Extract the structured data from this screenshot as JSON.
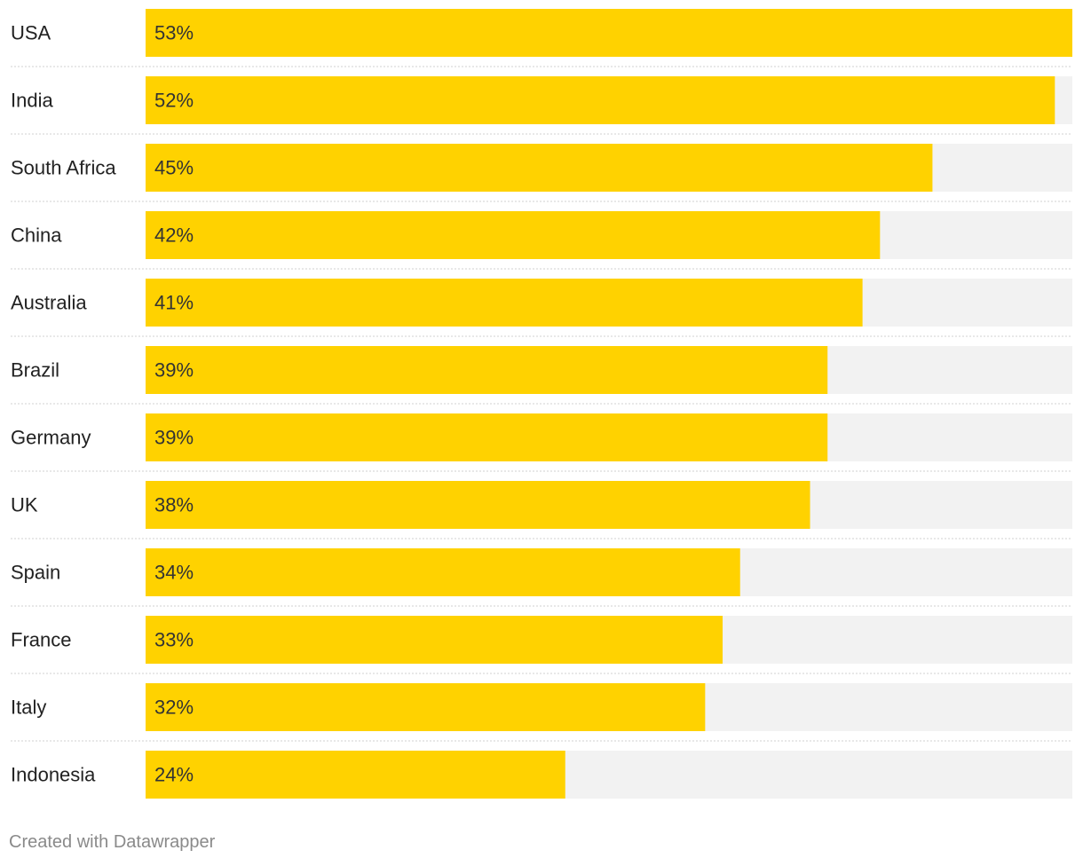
{
  "chart_data": {
    "type": "bar",
    "orientation": "horizontal",
    "categories": [
      "USA",
      "India",
      "South Africa",
      "China",
      "Australia",
      "Brazil",
      "Germany",
      "UK",
      "Spain",
      "France",
      "Italy",
      "Indonesia"
    ],
    "values": [
      53,
      52,
      45,
      42,
      41,
      39,
      39,
      38,
      34,
      33,
      32,
      24
    ],
    "value_labels": [
      "53%",
      "52%",
      "45%",
      "42%",
      "41%",
      "39%",
      "39%",
      "38%",
      "34%",
      "33%",
      "32%",
      "24%"
    ],
    "xlim": [
      0,
      53
    ],
    "title": "",
    "xlabel": "",
    "ylabel": "",
    "grid": false,
    "legend": "none"
  },
  "colors": {
    "bar": "#FFD200",
    "track": "#F2F2F2",
    "separator": "#D0D0D0"
  },
  "footer": {
    "credit": "Created with Datawrapper"
  }
}
